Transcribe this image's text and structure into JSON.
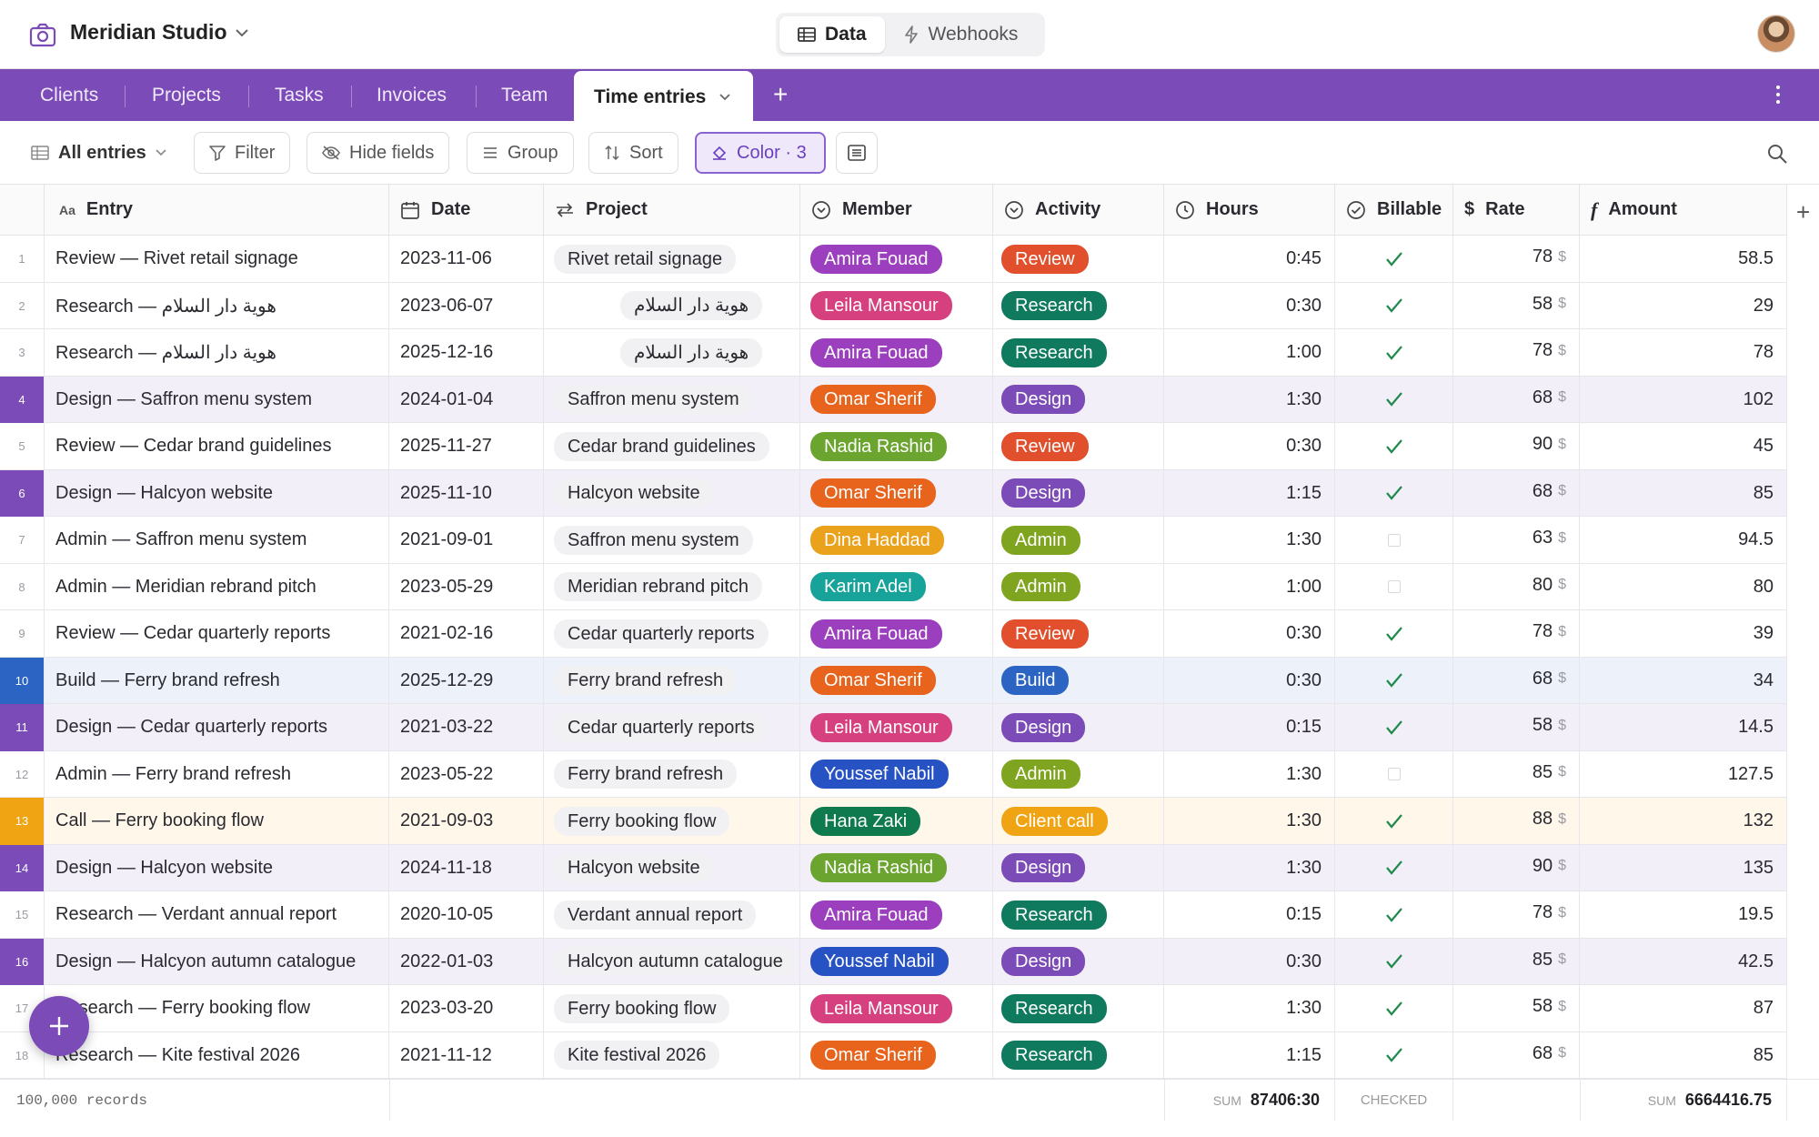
{
  "app": {
    "name": "Meridian Studio"
  },
  "view_switch": [
    {
      "label": "Data",
      "icon": "table-icon",
      "active": true
    },
    {
      "label": "Webhooks",
      "icon": "bolt-icon",
      "active": false
    }
  ],
  "tabs": [
    "Clients",
    "Projects",
    "Tasks",
    "Invoices",
    "Team"
  ],
  "active_tab": "Time entries",
  "toolbar": {
    "view": "All entries",
    "filter": "Filter",
    "hide": "Hide fields",
    "group": "Group",
    "sort": "Sort",
    "color": "Color · 3"
  },
  "columns": {
    "entry": "Entry",
    "entry_prefix": "Aa",
    "date": "Date",
    "project": "Project",
    "member": "Member",
    "activity": "Activity",
    "hours": "Hours",
    "billable": "Billable",
    "rate": "Rate",
    "rate_icon": "$",
    "amount": "Amount",
    "amount_icon": "f"
  },
  "colors": {
    "accent": "#7b4bb7",
    "design": "#7b4bb7",
    "review": "#e24f2c",
    "research": "#0f7a5e",
    "admin": "#7fa520",
    "build": "#2c64c4",
    "call": "#f0a413"
  },
  "rows": [
    {
      "n": "1",
      "entry": "Review — Rivet retail signage",
      "date": "2023-11-06",
      "project": "Rivet retail signage",
      "member": "Amira Fouad",
      "mcolor": "#9b3fbf",
      "activity": "Review",
      "acolor": "#e24f2c",
      "hours": "0:45",
      "billable": true,
      "rate": "78",
      "amount": "58.5",
      "hl": ""
    },
    {
      "n": "2",
      "entry": "Research — هوية دار السلام",
      "date": "2023-06-07",
      "project": "هوية دار السلام",
      "member": "Leila Mansour",
      "mcolor": "#d6407f",
      "activity": "Research",
      "acolor": "#0f7a5e",
      "hours": "0:30",
      "billable": true,
      "rate": "58",
      "amount": "29",
      "hl": ""
    },
    {
      "n": "3",
      "entry": "Research — هوية دار السلام",
      "date": "2025-12-16",
      "project": "هوية دار السلام",
      "member": "Amira Fouad",
      "mcolor": "#9b3fbf",
      "activity": "Research",
      "acolor": "#0f7a5e",
      "hours": "1:00",
      "billable": true,
      "rate": "78",
      "amount": "78",
      "hl": ""
    },
    {
      "n": "4",
      "entry": "Design — Saffron menu system",
      "date": "2024-01-04",
      "project": "Saffron menu system",
      "member": "Omar Sherif",
      "mcolor": "#e8631c",
      "activity": "Design",
      "acolor": "#7b4bb7",
      "hours": "1:30",
      "billable": true,
      "rate": "68",
      "amount": "102",
      "hl": "#7b4bb7"
    },
    {
      "n": "5",
      "entry": "Review — Cedar brand guidelines",
      "date": "2025-11-27",
      "project": "Cedar brand guidelines",
      "member": "Nadia Rashid",
      "mcolor": "#6ba530",
      "activity": "Review",
      "acolor": "#e24f2c",
      "hours": "0:30",
      "billable": true,
      "rate": "90",
      "amount": "45",
      "hl": ""
    },
    {
      "n": "6",
      "entry": "Design — Halcyon website",
      "date": "2025-11-10",
      "project": "Halcyon website",
      "member": "Omar Sherif",
      "mcolor": "#e8631c",
      "activity": "Design",
      "acolor": "#7b4bb7",
      "hours": "1:15",
      "billable": true,
      "rate": "68",
      "amount": "85",
      "hl": "#7b4bb7"
    },
    {
      "n": "7",
      "entry": "Admin — Saffron menu system",
      "date": "2021-09-01",
      "project": "Saffron menu system",
      "member": "Dina Haddad",
      "mcolor": "#eaa11c",
      "activity": "Admin",
      "acolor": "#7fa520",
      "hours": "1:30",
      "billable": false,
      "rate": "63",
      "amount": "94.5",
      "hl": ""
    },
    {
      "n": "8",
      "entry": "Admin — Meridian rebrand pitch",
      "date": "2023-05-29",
      "project": "Meridian rebrand pitch",
      "member": "Karim Adel",
      "mcolor": "#17a399",
      "activity": "Admin",
      "acolor": "#7fa520",
      "hours": "1:00",
      "billable": false,
      "rate": "80",
      "amount": "80",
      "hl": ""
    },
    {
      "n": "9",
      "entry": "Review — Cedar quarterly reports",
      "date": "2021-02-16",
      "project": "Cedar quarterly reports",
      "member": "Amira Fouad",
      "mcolor": "#9b3fbf",
      "activity": "Review",
      "acolor": "#e24f2c",
      "hours": "0:30",
      "billable": true,
      "rate": "78",
      "amount": "39",
      "hl": ""
    },
    {
      "n": "10",
      "entry": "Build — Ferry brand refresh",
      "date": "2025-12-29",
      "project": "Ferry brand refresh",
      "member": "Omar Sherif",
      "mcolor": "#e8631c",
      "activity": "Build",
      "acolor": "#2c64c4",
      "hours": "0:30",
      "billable": true,
      "rate": "68",
      "amount": "34",
      "hl": "#2c64c4"
    },
    {
      "n": "11",
      "entry": "Design — Cedar quarterly reports",
      "date": "2021-03-22",
      "project": "Cedar quarterly reports",
      "member": "Leila Mansour",
      "mcolor": "#d6407f",
      "activity": "Design",
      "acolor": "#7b4bb7",
      "hours": "0:15",
      "billable": true,
      "rate": "58",
      "amount": "14.5",
      "hl": "#7b4bb7"
    },
    {
      "n": "12",
      "entry": "Admin — Ferry brand refresh",
      "date": "2023-05-22",
      "project": "Ferry brand refresh",
      "member": "Youssef Nabil",
      "mcolor": "#2752c4",
      "activity": "Admin",
      "acolor": "#7fa520",
      "hours": "1:30",
      "billable": false,
      "rate": "85",
      "amount": "127.5",
      "hl": ""
    },
    {
      "n": "13",
      "entry": "Call — Ferry booking flow",
      "date": "2021-09-03",
      "project": "Ferry booking flow",
      "member": "Hana Zaki",
      "mcolor": "#0f7a4e",
      "activity": "Client call",
      "acolor": "#f0a413",
      "hours": "1:30",
      "billable": true,
      "rate": "88",
      "amount": "132",
      "hl": "#f0a413"
    },
    {
      "n": "14",
      "entry": "Design — Halcyon website",
      "date": "2024-11-18",
      "project": "Halcyon website",
      "member": "Nadia Rashid",
      "mcolor": "#6ba530",
      "activity": "Design",
      "acolor": "#7b4bb7",
      "hours": "1:30",
      "billable": true,
      "rate": "90",
      "amount": "135",
      "hl": "#7b4bb7"
    },
    {
      "n": "15",
      "entry": "Research — Verdant annual report",
      "date": "2020-10-05",
      "project": "Verdant annual report",
      "member": "Amira Fouad",
      "mcolor": "#9b3fbf",
      "activity": "Research",
      "acolor": "#0f7a5e",
      "hours": "0:15",
      "billable": true,
      "rate": "78",
      "amount": "19.5",
      "hl": ""
    },
    {
      "n": "16",
      "entry": "Design — Halcyon autumn catalogue",
      "date": "2022-01-03",
      "project": "Halcyon autumn catalogue",
      "member": "Youssef Nabil",
      "mcolor": "#2752c4",
      "activity": "Design",
      "acolor": "#7b4bb7",
      "hours": "0:30",
      "billable": true,
      "rate": "85",
      "amount": "42.5",
      "hl": "#7b4bb7"
    },
    {
      "n": "17",
      "entry": "Research — Ferry booking flow",
      "date": "2023-03-20",
      "project": "Ferry booking flow",
      "member": "Leila Mansour",
      "mcolor": "#d6407f",
      "activity": "Research",
      "acolor": "#0f7a5e",
      "hours": "1:30",
      "billable": true,
      "rate": "58",
      "amount": "87",
      "hl": ""
    },
    {
      "n": "18",
      "entry": "Research — Kite festival 2026",
      "date": "2021-11-12",
      "project": "Kite festival 2026",
      "member": "Omar Sherif",
      "mcolor": "#e8631c",
      "activity": "Research",
      "acolor": "#0f7a5e",
      "hours": "1:15",
      "billable": true,
      "rate": "68",
      "amount": "85",
      "hl": ""
    }
  ],
  "footer": {
    "records": "100,000 records",
    "sum_label": "SUM",
    "hours_sum": "87406:30",
    "checked": "CHECKED",
    "amount_sum": "6664416.75"
  }
}
